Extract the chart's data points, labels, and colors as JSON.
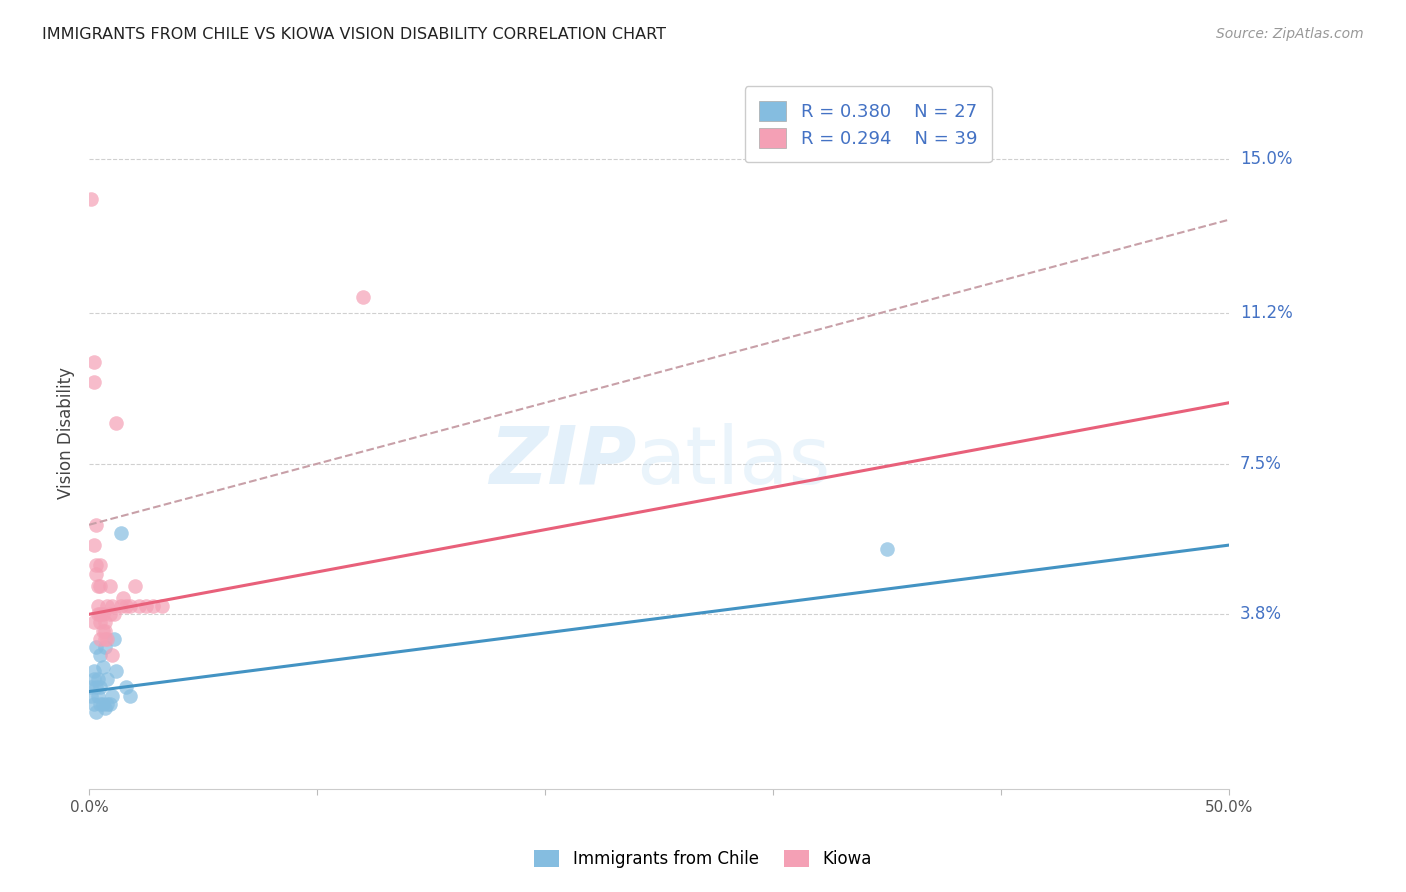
{
  "title": "IMMIGRANTS FROM CHILE VS KIOWA VISION DISABILITY CORRELATION CHART",
  "source": "Source: ZipAtlas.com",
  "ylabel": "Vision Disability",
  "ytick_labels": [
    "15.0%",
    "11.2%",
    "7.5%",
    "3.8%"
  ],
  "ytick_values": [
    0.15,
    0.112,
    0.075,
    0.038
  ],
  "xlim": [
    0.0,
    0.5
  ],
  "ylim": [
    -0.005,
    0.17
  ],
  "legend_blue_r": "R = 0.380",
  "legend_blue_n": "N = 27",
  "legend_pink_r": "R = 0.294",
  "legend_pink_n": "N = 39",
  "blue_color": "#85bde0",
  "pink_color": "#f4a0b5",
  "blue_line_color": "#4393c3",
  "pink_line_color": "#e8607a",
  "dashed_line_color": "#c8a0a8",
  "blue_scatter_x": [
    0.001,
    0.001,
    0.002,
    0.002,
    0.002,
    0.003,
    0.003,
    0.003,
    0.004,
    0.004,
    0.005,
    0.005,
    0.005,
    0.006,
    0.006,
    0.007,
    0.007,
    0.008,
    0.008,
    0.009,
    0.01,
    0.011,
    0.012,
    0.014,
    0.016,
    0.018,
    0.35
  ],
  "blue_scatter_y": [
    0.02,
    0.018,
    0.022,
    0.024,
    0.016,
    0.014,
    0.02,
    0.03,
    0.018,
    0.022,
    0.016,
    0.02,
    0.028,
    0.016,
    0.025,
    0.015,
    0.03,
    0.016,
    0.022,
    0.016,
    0.018,
    0.032,
    0.024,
    0.058,
    0.02,
    0.018,
    0.054
  ],
  "pink_scatter_x": [
    0.001,
    0.002,
    0.002,
    0.002,
    0.003,
    0.003,
    0.003,
    0.004,
    0.004,
    0.004,
    0.005,
    0.005,
    0.005,
    0.005,
    0.005,
    0.006,
    0.006,
    0.007,
    0.007,
    0.007,
    0.008,
    0.008,
    0.009,
    0.009,
    0.01,
    0.01,
    0.011,
    0.012,
    0.014,
    0.015,
    0.016,
    0.018,
    0.02,
    0.022,
    0.025,
    0.028,
    0.032,
    0.12,
    0.002
  ],
  "pink_scatter_y": [
    0.14,
    0.095,
    0.055,
    0.036,
    0.06,
    0.05,
    0.048,
    0.045,
    0.04,
    0.038,
    0.05,
    0.045,
    0.038,
    0.036,
    0.032,
    0.038,
    0.034,
    0.036,
    0.034,
    0.032,
    0.032,
    0.04,
    0.045,
    0.038,
    0.04,
    0.028,
    0.038,
    0.085,
    0.04,
    0.042,
    0.04,
    0.04,
    0.045,
    0.04,
    0.04,
    0.04,
    0.04,
    0.116,
    0.1
  ],
  "blue_line_x": [
    0.0,
    0.5
  ],
  "blue_line_y": [
    0.019,
    0.055
  ],
  "pink_line_x": [
    0.0,
    0.5
  ],
  "pink_line_y": [
    0.038,
    0.09
  ],
  "dashed_line_x": [
    0.0,
    0.5
  ],
  "dashed_line_y": [
    0.06,
    0.135
  ]
}
